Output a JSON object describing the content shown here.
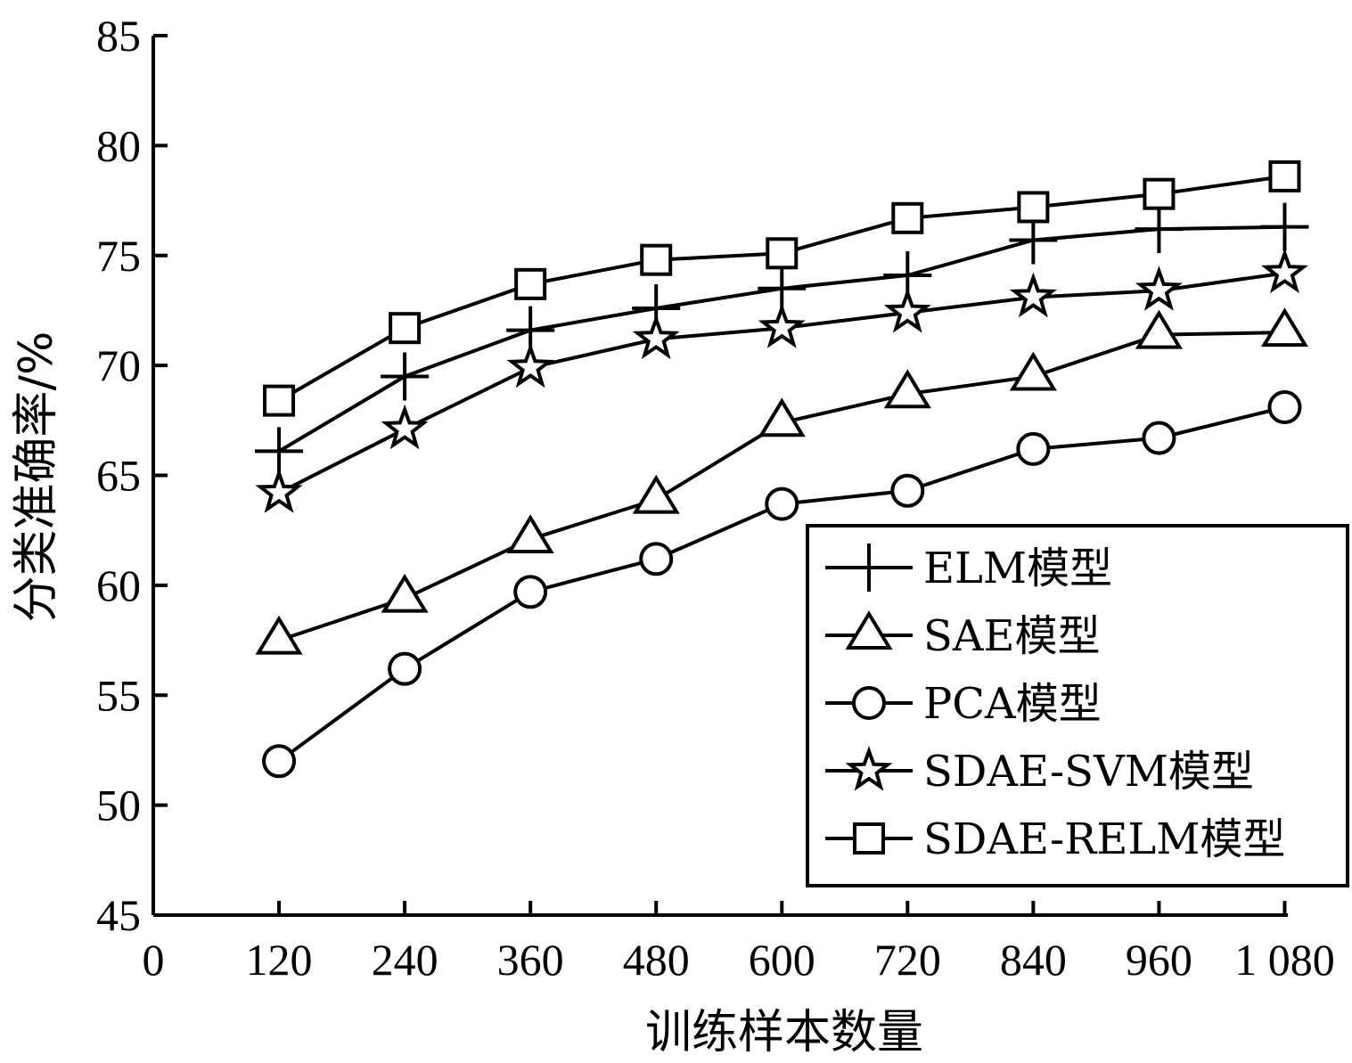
{
  "chart_data": {
    "type": "line",
    "xlabel": "训练样本数量",
    "ylabel": "分类准确率/%",
    "xlim": [
      0,
      1140
    ],
    "ylim": [
      45,
      85
    ],
    "x_ticks": [
      0,
      120,
      240,
      360,
      480,
      600,
      720,
      840,
      960,
      1080
    ],
    "x_tick_labels": [
      "0",
      "120",
      "240",
      "360",
      "480",
      "600",
      "720",
      "840",
      "960",
      "1 080"
    ],
    "y_ticks": [
      45,
      50,
      55,
      60,
      65,
      70,
      75,
      80,
      85
    ],
    "y_tick_labels": [
      "45",
      "50",
      "55",
      "60",
      "65",
      "70",
      "75",
      "80",
      "85"
    ],
    "x": [
      120,
      240,
      360,
      480,
      600,
      720,
      840,
      960,
      1080
    ],
    "grid": false,
    "legend_position": "bottom-right",
    "series": [
      {
        "name": "ELM模型",
        "marker": "plus",
        "values": [
          66.1,
          69.5,
          71.6,
          72.6,
          73.5,
          74.1,
          75.7,
          76.2,
          76.3
        ]
      },
      {
        "name": "SAE模型",
        "marker": "triangle",
        "values": [
          57.5,
          59.4,
          62.1,
          63.9,
          67.4,
          68.7,
          69.5,
          71.4,
          71.5
        ]
      },
      {
        "name": "PCA模型",
        "marker": "circle",
        "values": [
          52.0,
          56.2,
          59.7,
          61.2,
          63.7,
          64.3,
          66.2,
          66.7,
          68.1
        ]
      },
      {
        "name": "SDAE-SVM模型",
        "marker": "star",
        "values": [
          64.2,
          67.1,
          69.9,
          71.2,
          71.7,
          72.4,
          73.1,
          73.4,
          74.2
        ]
      },
      {
        "name": "SDAE-RELM模型",
        "marker": "square",
        "values": [
          68.4,
          71.7,
          73.7,
          74.8,
          75.1,
          76.7,
          77.2,
          77.8,
          78.6
        ]
      }
    ]
  }
}
